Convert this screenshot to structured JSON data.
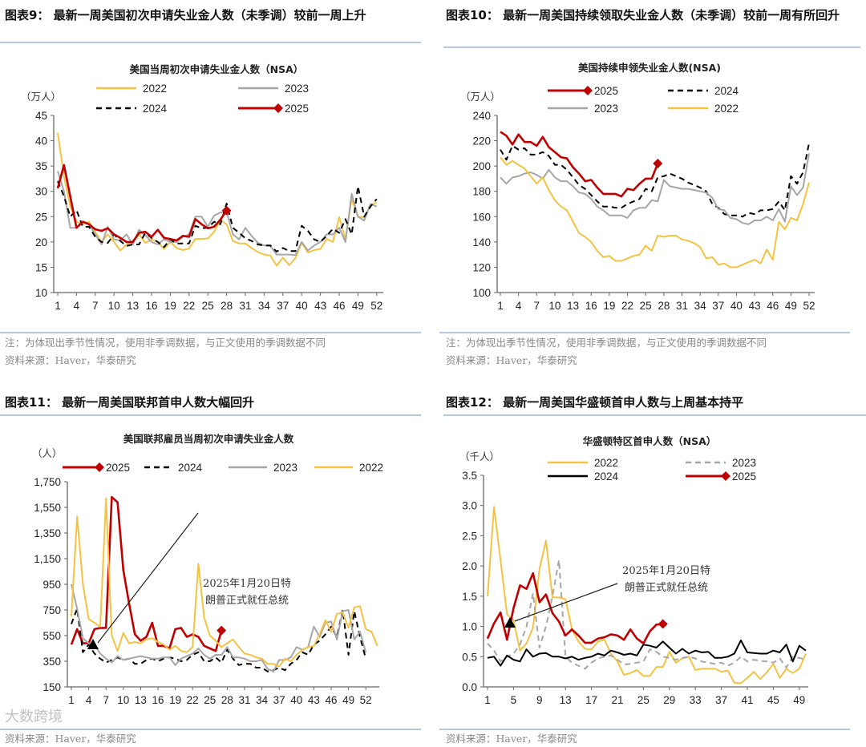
{
  "figures": [
    {
      "heading": "图表9：  最新一周美国初次申请失业金人数（未季调）较前一周上升",
      "note": "注：为体现出季节性情况，使用非季调数据，与正文使用的季调数据不同",
      "source": "资料来源：Haver，华泰研究"
    },
    {
      "heading": "图表10：  最新一周美国持续领取失业金人数（未季调）较前一周有所回升",
      "note": "注：为体现出季节性情况，使用非季调数据，与正文使用的季调数据不同",
      "source": "资料来源：Haver，华泰研究"
    },
    {
      "heading": "图表11：  最新一周美国联邦首申人数大幅回升",
      "source": "资料来源：Haver，华泰研究"
    },
    {
      "heading": "图表12：  最新一周美国华盛顿首申人数与上周基本持平",
      "source": "资料来源：Haver，华泰研究"
    }
  ],
  "watermark": "大数跨境",
  "colors": {
    "2022": "#f5c242",
    "2023": "#a6a6a6",
    "2024": "#000000",
    "2025": "#c00000"
  },
  "chart_data": [
    {
      "type": "line",
      "title": "美国当周初次申请失业金人数（NSA）",
      "ylabel": "（万人）",
      "ylim": [
        10,
        45
      ],
      "yticks": [
        10,
        15,
        20,
        25,
        30,
        35,
        40,
        45
      ],
      "xticks": [
        1,
        4,
        7,
        10,
        13,
        16,
        19,
        22,
        25,
        28,
        31,
        34,
        37,
        40,
        43,
        46,
        49,
        52
      ],
      "series": [
        {
          "name": "2022",
          "style": "solid",
          "values": [
            41.5,
            33,
            27,
            24,
            23.5,
            24,
            22,
            20,
            21.5,
            20,
            18.3,
            19.5,
            20,
            21.5,
            19.8,
            20.5,
            20,
            18.6,
            20,
            18.8,
            18.4,
            18.7,
            20.6,
            20.6,
            20.7,
            22,
            24.3,
            23.5,
            20.2,
            19.7,
            19.7,
            18.8,
            18,
            17.5,
            17.3,
            15.3,
            16.9,
            15.4,
            16.8,
            19.8,
            17.9,
            18.4,
            18.6,
            20.6,
            20,
            24.9,
            20.5,
            28.5,
            25,
            24.8,
            27.3,
            27.8
          ]
        },
        {
          "name": "2023",
          "style": "solid",
          "values": [
            34,
            30,
            22.8,
            22.8,
            24,
            23.5,
            21.5,
            19.5,
            23,
            20.5,
            20.3,
            21.5,
            19.5,
            22.4,
            21.3,
            20,
            19.5,
            20.5,
            20,
            20,
            21,
            21.5,
            25,
            25,
            23,
            25.2,
            25.8,
            26,
            21.5,
            20.5,
            22.8,
            21.2,
            19.8,
            19.3,
            19.2,
            17.5,
            17.5,
            17.5,
            17.4,
            20,
            18.3,
            19.3,
            20,
            21.5,
            21.5,
            22.8,
            20,
            29.5,
            25,
            24.2,
            27.5,
            27
          ]
        },
        {
          "name": "2024",
          "style": "dash",
          "values": [
            32,
            29,
            25,
            26.3,
            23,
            23,
            21,
            20,
            19.8,
            21.5,
            20.2,
            19.2,
            19.5,
            19.5,
            21.8,
            20.8,
            20,
            19,
            20.5,
            19.7,
            19.7,
            19.7,
            23.2,
            22.7,
            22.8,
            24,
            23.5,
            27.6,
            22.8,
            21.8,
            20.7,
            20.2,
            19.5,
            19.3,
            19.3,
            18.1,
            18.8,
            18.2,
            18.2,
            23.2,
            22.2,
            20.5,
            20,
            21.2,
            22.6,
            21.8,
            24.5,
            21.5,
            31,
            25,
            27,
            28.5
          ]
        },
        {
          "name": "2025",
          "style": "marker",
          "values": [
            30.6,
            35.2,
            29,
            22.8,
            24,
            23.5,
            22.5,
            22.2,
            22.7,
            21.5,
            20.8,
            20,
            20,
            21.8,
            22,
            21,
            22.4,
            20.8,
            20.6,
            20.3,
            21.2,
            21,
            24.5,
            23.5,
            22.7,
            23,
            24.4,
            26.2
          ]
        }
      ]
    },
    {
      "type": "line",
      "title": "美国持续申领失业金人数(NSA)",
      "ylabel": "（万人）",
      "ylim": [
        100,
        240
      ],
      "yticks": [
        100,
        120,
        140,
        160,
        180,
        200,
        220,
        240
      ],
      "xticks": [
        1,
        4,
        7,
        10,
        13,
        16,
        19,
        22,
        25,
        28,
        31,
        34,
        37,
        40,
        43,
        46,
        49,
        52
      ],
      "series": [
        {
          "name": "2025",
          "style": "marker",
          "values": [
            227,
            224,
            217,
            225,
            219,
            219,
            216,
            223,
            215,
            211,
            207,
            206,
            199,
            194,
            188,
            189,
            183,
            178,
            178,
            178,
            176,
            182,
            181,
            186,
            190,
            190,
            202
          ]
        },
        {
          "name": "2024",
          "style": "dash",
          "values": [
            213,
            205,
            216,
            213,
            214,
            209,
            209,
            211,
            208,
            201,
            201,
            197,
            191,
            185,
            182,
            177,
            172,
            168,
            168,
            167,
            167,
            170,
            172,
            174,
            182,
            180,
            191,
            192,
            194,
            192,
            190,
            187,
            185,
            183,
            180,
            170,
            167,
            162,
            161,
            161,
            160,
            163,
            162,
            165,
            165,
            166,
            172,
            165,
            192,
            186,
            195,
            218
          ]
        },
        {
          "name": "2023",
          "style": "solid",
          "values": [
            191,
            186,
            191,
            192,
            194,
            195,
            193,
            190,
            197,
            191,
            188,
            188,
            184,
            179,
            178,
            174,
            168,
            165,
            161,
            161,
            161,
            159,
            165,
            167,
            167,
            173,
            172,
            189,
            184,
            183,
            182,
            182,
            181,
            180,
            179,
            175,
            166,
            165,
            159,
            158,
            155,
            154,
            157,
            157,
            160,
            157,
            166,
            156,
            184,
            177,
            183,
            210
          ]
        },
        {
          "name": "2022",
          "style": "solid",
          "values": [
            207,
            201,
            204,
            201,
            198,
            192,
            186,
            191,
            181,
            173,
            168,
            165,
            156,
            147,
            144,
            140,
            133,
            128,
            129,
            125,
            125,
            127,
            129,
            130,
            137,
            133,
            145,
            144,
            145,
            145,
            142,
            141,
            139,
            136,
            127,
            128,
            122,
            123,
            120,
            120,
            122,
            124,
            126,
            123,
            134,
            126,
            156,
            150,
            159,
            157,
            170,
            187
          ]
        }
      ]
    },
    {
      "type": "line",
      "title": "美国联邦雇员当周初次申请失业金人数",
      "ylabel": "（人）",
      "ylim": [
        150,
        1750
      ],
      "yticks": [
        150,
        350,
        550,
        750,
        950,
        1150,
        1350,
        1550,
        1750
      ],
      "yticklabels": [
        "150",
        "350",
        "550",
        "750",
        "950",
        "1,150",
        "1,350",
        "1,550",
        "1,750"
      ],
      "xticks": [
        1,
        4,
        7,
        10,
        13,
        16,
        19,
        22,
        25,
        28,
        31,
        34,
        37,
        40,
        43,
        46,
        49,
        52
      ],
      "annotation": "2025年1月20日特朗普正式就任总统",
      "series": [
        {
          "name": "2025",
          "style": "marker",
          "values": [
            480,
            600,
            490,
            490,
            600,
            610,
            610,
            1630,
            1590,
            1060,
            800,
            560,
            510,
            540,
            650,
            470,
            470,
            450,
            600,
            610,
            540,
            560,
            540,
            470,
            450,
            430,
            590
          ]
        },
        {
          "name": "2024",
          "style": "dash",
          "values": [
            640,
            760,
            420,
            480,
            410,
            370,
            340,
            360,
            380,
            360,
            370,
            330,
            330,
            360,
            370,
            350,
            370,
            380,
            370,
            350,
            360,
            400,
            420,
            350,
            350,
            380,
            340,
            440,
            370,
            320,
            330,
            330,
            300,
            300,
            270,
            280,
            300,
            280,
            330,
            360,
            420,
            400,
            480,
            510,
            560,
            620,
            540,
            750,
            400,
            740,
            540,
            370
          ]
        },
        {
          "name": "2023",
          "style": "solid",
          "values": [
            950,
            760,
            530,
            490,
            480,
            410,
            370,
            340,
            390,
            360,
            370,
            380,
            390,
            380,
            370,
            370,
            380,
            380,
            320,
            370,
            390,
            410,
            450,
            400,
            370,
            400,
            400,
            460,
            380,
            380,
            370,
            350,
            350,
            360,
            290,
            270,
            360,
            360,
            380,
            460,
            440,
            460,
            620,
            540,
            650,
            660,
            520,
            740,
            750,
            520,
            580,
            420
          ]
        },
        {
          "name": "2022",
          "style": "solid",
          "values": [
            700,
            1480,
            950,
            680,
            650,
            620,
            1620,
            550,
            430,
            570,
            490,
            500,
            490,
            520,
            530,
            500,
            480,
            440,
            470,
            430,
            420,
            460,
            1110,
            690,
            550,
            510,
            460,
            490,
            520,
            460,
            410,
            400,
            380,
            370,
            330,
            330,
            310,
            370,
            350,
            400,
            440,
            460,
            470,
            560,
            670,
            580,
            720,
            730,
            610,
            770,
            780,
            600,
            580,
            470
          ]
        }
      ]
    },
    {
      "type": "line",
      "title": "华盛顿特区首申人数（NSA）",
      "ylabel": "（千人）",
      "ylim": [
        0,
        3.5
      ],
      "yticks": [
        0,
        0.5,
        1,
        1.5,
        2,
        2.5,
        3,
        3.5
      ],
      "yticklabels": [
        "0.0",
        "0.5",
        "1.0",
        "1.5",
        "2.0",
        "2.5",
        "3.0",
        "3.5"
      ],
      "xticks": [
        1,
        5,
        9,
        13,
        17,
        21,
        25,
        29,
        33,
        37,
        41,
        45,
        49
      ],
      "annotation": "2025年1月20日特朗普正式就任总统",
      "series": [
        {
          "name": "2022",
          "style": "solid",
          "values": [
            1.5,
            2.98,
            2.1,
            1.2,
            1.1,
            0.6,
            0.72,
            0.98,
            1.95,
            2.42,
            1.48,
            1.48,
            1.45,
            0.95,
            0.75,
            0.63,
            0.62,
            0.75,
            0.78,
            0.55,
            0.42,
            0.2,
            0.23,
            0.28,
            0.18,
            0.18,
            0.33,
            0.33,
            0.58,
            0.4,
            0.47,
            0.5,
            0.28,
            0.3,
            0.3,
            0.3,
            0.25,
            0.27,
            0.07,
            0.06,
            0.15,
            0.25,
            0.13,
            0.24,
            0.38,
            0.15,
            0.3,
            0.23,
            0.3,
            0.55
          ]
        },
        {
          "name": "2023",
          "style": "dash",
          "values": [
            0.72,
            0.6,
            0.42,
            0.5,
            0.55,
            0.7,
            1.0,
            1.55,
            0.65,
            1.0,
            1.5,
            2.1,
            0.5,
            0.4,
            0.35,
            0.3,
            0.4,
            0.47,
            0.5,
            0.52,
            0.45,
            0.37,
            0.38,
            0.4,
            0.42,
            0.62,
            0.58,
            0.5,
            0.48,
            0.45,
            0.48,
            0.5,
            0.47,
            0.42,
            0.4,
            0.38,
            0.4,
            0.35,
            0.4,
            0.5,
            0.42,
            0.45,
            0.43,
            0.42,
            0.4,
            0.47,
            0.32,
            0.5,
            0.48,
            0.45
          ]
        },
        {
          "name": "2024",
          "style": "solid",
          "values": [
            0.48,
            0.5,
            0.35,
            0.52,
            0.45,
            0.42,
            0.62,
            0.5,
            0.55,
            0.56,
            0.5,
            0.5,
            0.47,
            0.5,
            0.45,
            0.48,
            0.5,
            0.55,
            0.52,
            0.6,
            0.57,
            0.53,
            0.55,
            0.52,
            0.7,
            0.68,
            0.65,
            0.75,
            0.65,
            0.55,
            0.63,
            0.55,
            0.6,
            0.57,
            0.58,
            0.48,
            0.48,
            0.5,
            0.55,
            0.77,
            0.57,
            0.56,
            0.55,
            0.55,
            0.6,
            0.57,
            0.7,
            0.42,
            0.68,
            0.6
          ]
        },
        {
          "name": "2025",
          "style": "marker",
          "values": [
            0.8,
            1.05,
            1.23,
            0.78,
            1.3,
            1.68,
            1.62,
            1.88,
            1.4,
            1.53,
            1.22,
            1.08,
            0.85,
            0.95,
            0.85,
            0.73,
            0.73,
            0.8,
            0.82,
            0.87,
            0.85,
            0.78,
            0.95,
            0.8,
            0.72,
            0.92,
            1.03,
            1.04
          ]
        }
      ]
    }
  ]
}
